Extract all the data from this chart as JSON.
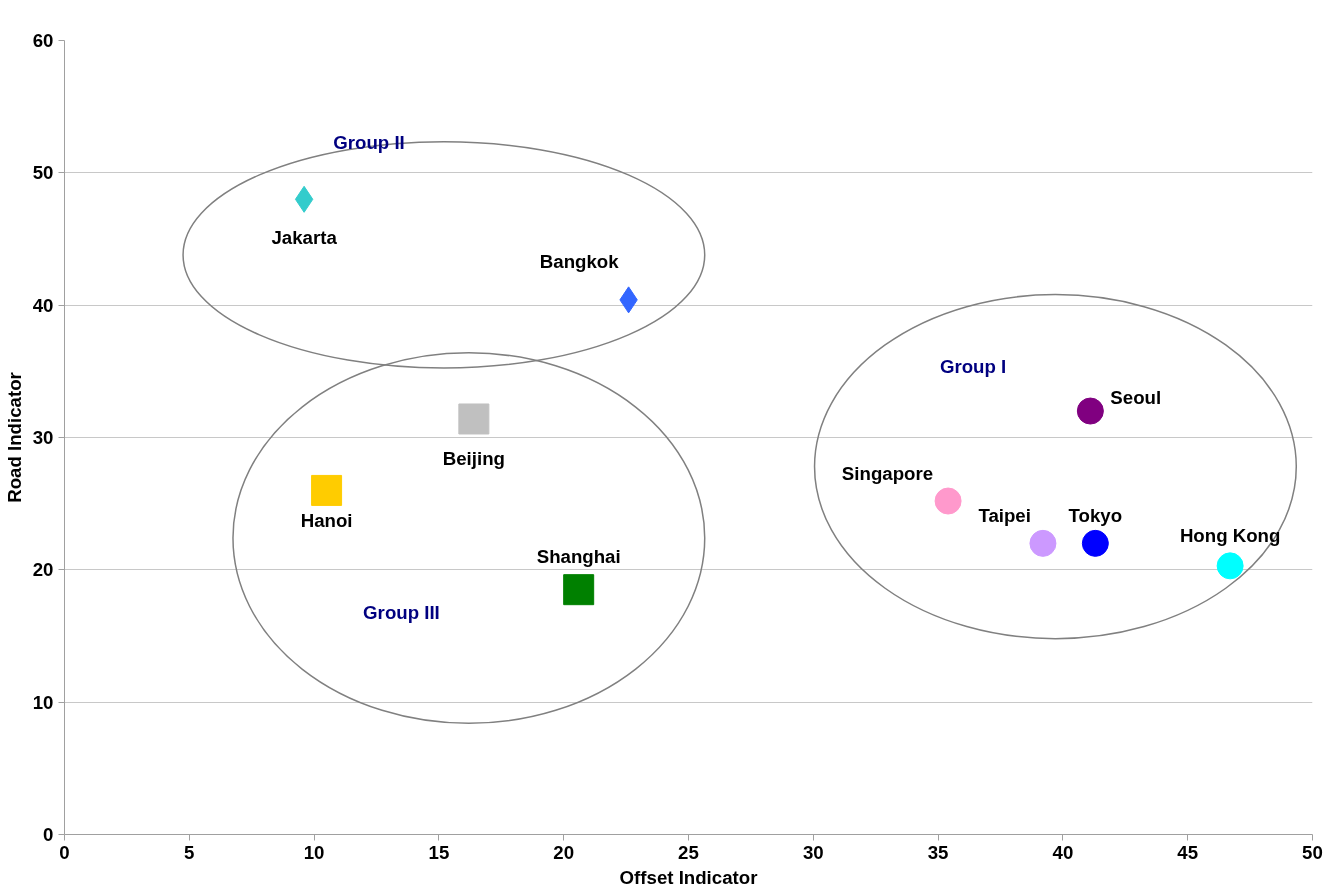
{
  "chart_data": {
    "type": "scatter",
    "xlabel": "Offset Indicator",
    "ylabel": "Road Indicator",
    "xlim": [
      0,
      50
    ],
    "xticks": [
      0,
      5,
      10,
      15,
      20,
      25,
      30,
      35,
      40,
      45,
      50
    ],
    "ylim": [
      0,
      60
    ],
    "yticks": [
      0,
      10,
      20,
      30,
      40,
      50,
      60
    ],
    "grid": "y",
    "legend": false,
    "series": [
      {
        "name": "Jakarta",
        "color": "#33cccc",
        "marker": "diamond",
        "x": [
          9.6
        ],
        "values": [
          48.0
        ]
      },
      {
        "name": "Bangkok",
        "color": "#3366ff",
        "marker": "diamond",
        "x": [
          22.6
        ],
        "values": [
          40.4
        ]
      },
      {
        "name": "Beijing",
        "color": "#c0c0c0",
        "marker": "square",
        "x": [
          16.4
        ],
        "values": [
          31.4
        ]
      },
      {
        "name": "Hanoi",
        "color": "#ffcc00",
        "marker": "square",
        "x": [
          10.5
        ],
        "values": [
          26.0
        ]
      },
      {
        "name": "Shanghai",
        "color": "#008000",
        "marker": "square",
        "x": [
          20.6
        ],
        "values": [
          18.5
        ]
      },
      {
        "name": "Seoul",
        "color": "#800080",
        "marker": "circle",
        "x": [
          41.1
        ],
        "values": [
          32.0
        ]
      },
      {
        "name": "Singapore",
        "color": "#ff99cc",
        "marker": "circle",
        "x": [
          35.4
        ],
        "values": [
          25.2
        ]
      },
      {
        "name": "Taipei",
        "color": "#cc99ff",
        "marker": "circle",
        "x": [
          39.2
        ],
        "values": [
          22.0
        ]
      },
      {
        "name": "Tokyo",
        "color": "#0000ff",
        "marker": "circle",
        "x": [
          41.3
        ],
        "values": [
          22.0
        ]
      },
      {
        "name": "Hong Kong",
        "color": "#00ffff",
        "marker": "circle",
        "x": [
          46.7
        ],
        "values": [
          20.3
        ]
      }
    ],
    "annotations": [
      "Group II",
      "Group III",
      "Group I"
    ]
  }
}
